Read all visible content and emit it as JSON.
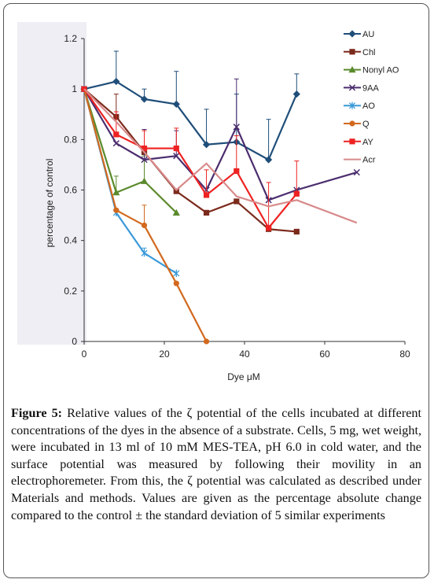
{
  "chart_data": {
    "type": "line",
    "xlabel": "Dye μM",
    "ylabel": "percentage of control",
    "xlim": [
      0,
      80
    ],
    "ylim": [
      0,
      1.2
    ],
    "xticks": [
      "0",
      "20",
      "40",
      "60",
      "80"
    ],
    "yticks": [
      "0",
      "0.2",
      "0.4",
      "0.6",
      "0.8",
      "1",
      "1.2"
    ],
    "legend_position": "right",
    "series": [
      {
        "name": "AU",
        "color": "#1f4e79",
        "marker": "diamond",
        "x": [
          0,
          8,
          15,
          23,
          30.5,
          38,
          46,
          53
        ],
        "y": [
          1.0,
          1.03,
          0.96,
          0.94,
          0.78,
          0.79,
          0.72,
          0.98
        ],
        "err": [
          0,
          0.12,
          0.04,
          0.13,
          0.14,
          0.19,
          0.16,
          0.08
        ]
      },
      {
        "name": "Chl",
        "color": "#7b2a1c",
        "marker": "square",
        "x": [
          0,
          8,
          15,
          23,
          30.5,
          38,
          46,
          53
        ],
        "y": [
          1.0,
          0.89,
          0.75,
          0.595,
          0.51,
          0.555,
          0.445,
          0.435
        ],
        "err": [
          0,
          0.09,
          0,
          0,
          0,
          0,
          0,
          0
        ]
      },
      {
        "name": "Nonyl AO",
        "color": "#5a8a2c",
        "marker": "triangle",
        "x": [
          0,
          8,
          15,
          23
        ],
        "y": [
          1.0,
          0.59,
          0.635,
          0.51
        ],
        "err": [
          0,
          0.065,
          0.1,
          0
        ]
      },
      {
        "name": "9AA",
        "color": "#4b2d6e",
        "marker": "x",
        "x": [
          0,
          8,
          15,
          23,
          30.5,
          38,
          46,
          53,
          68
        ],
        "y": [
          1.0,
          0.785,
          0.72,
          0.735,
          0.6,
          0.85,
          0.56,
          0.6,
          0.67
        ],
        "err": [
          0,
          0,
          0.12,
          0.1,
          0,
          0.19,
          0,
          0,
          0
        ]
      },
      {
        "name": "AO",
        "color": "#3a9ad9",
        "marker": "star",
        "x": [
          0,
          8,
          15,
          23
        ],
        "y": [
          1.0,
          0.51,
          0.35,
          0.27
        ],
        "err": [
          0,
          0,
          0.02,
          0
        ]
      },
      {
        "name": "Q",
        "color": "#d2691e",
        "marker": "circle",
        "x": [
          0,
          8,
          15,
          23,
          30.5
        ],
        "y": [
          1.0,
          0.52,
          0.46,
          0.23,
          0.0
        ],
        "err": [
          0,
          0,
          0.08,
          0,
          0
        ]
      },
      {
        "name": "AY",
        "color": "#ee2222",
        "marker": "square",
        "x": [
          0,
          8,
          15,
          23,
          30.5,
          38,
          46,
          53
        ],
        "y": [
          1.0,
          0.82,
          0.765,
          0.765,
          0.58,
          0.675,
          0.45,
          0.585
        ],
        "err": [
          0,
          0.09,
          0.07,
          0.08,
          0.1,
          0.14,
          0.18,
          0.13
        ]
      },
      {
        "name": "Acr",
        "color": "#d88a8a",
        "marker": "none",
        "x": [
          0,
          8,
          15,
          23,
          30.5,
          38,
          46,
          53,
          68
        ],
        "y": [
          1.0,
          0.87,
          0.75,
          0.6,
          0.705,
          0.575,
          0.535,
          0.56,
          0.47
        ],
        "err": [
          0,
          0,
          0,
          0,
          0,
          0,
          0,
          0,
          0
        ]
      }
    ]
  },
  "caption": {
    "label": "Figure 5:",
    "text": " Relative values of the ζ potential of the cells incubated at different concentrations of the dyes in the absence of a substrate. Cells, 5 mg, wet weight, were incubated in 13 ml of 10 mM MES-TEA, pH 6.0 in cold water, and the surface potential was measured by following their movility in an electrophoremeter. From this, the ζ potential was calculated as described under Materials and methods. Values are given as the percentage absolute change compared to the control ± the standard deviation of 5 similar experiments"
  }
}
